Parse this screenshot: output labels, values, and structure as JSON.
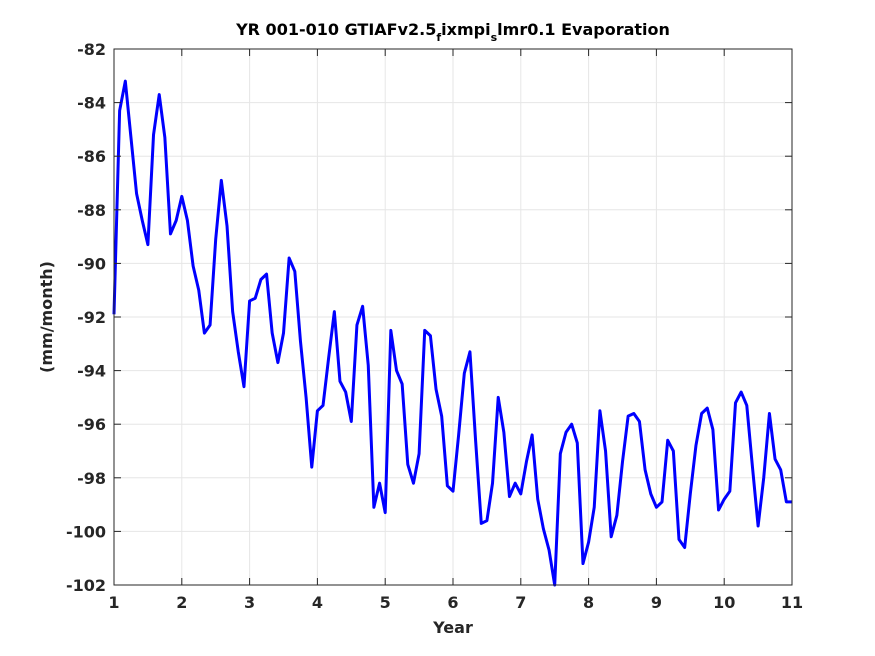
{
  "chart_data": {
    "type": "line",
    "title": {
      "part1": "YR 001-010 GTIAFv2.5",
      "sub1": "f",
      "part2": "ixmpi",
      "sub2": "s",
      "part3": "lmr0.1 Evaporation"
    },
    "xlabel": "Year",
    "ylabel": "(mm/month)",
    "xlim": [
      1,
      11
    ],
    "ylim": [
      -102,
      -82
    ],
    "xticks": [
      1,
      2,
      3,
      4,
      5,
      6,
      7,
      8,
      9,
      10,
      11
    ],
    "yticks": [
      -102,
      -100,
      -98,
      -96,
      -94,
      -92,
      -90,
      -88,
      -86,
      -84,
      -82
    ],
    "grid": true,
    "series": [
      {
        "color": "#0000ff",
        "x": [
          1.0,
          1.083,
          1.167,
          1.25,
          1.333,
          1.417,
          1.5,
          1.583,
          1.667,
          1.75,
          1.833,
          1.917,
          2.0,
          2.083,
          2.167,
          2.25,
          2.333,
          2.417,
          2.5,
          2.583,
          2.667,
          2.75,
          2.833,
          2.917,
          3.0,
          3.083,
          3.167,
          3.25,
          3.333,
          3.417,
          3.5,
          3.583,
          3.667,
          3.75,
          3.833,
          3.917,
          4.0,
          4.083,
          4.167,
          4.25,
          4.333,
          4.417,
          4.5,
          4.583,
          4.667,
          4.75,
          4.833,
          4.917,
          5.0,
          5.083,
          5.167,
          5.25,
          5.333,
          5.417,
          5.5,
          5.583,
          5.667,
          5.75,
          5.833,
          5.917,
          6.0,
          6.083,
          6.167,
          6.25,
          6.333,
          6.417,
          6.5,
          6.583,
          6.667,
          6.75,
          6.833,
          6.917,
          7.0,
          7.083,
          7.167,
          7.25,
          7.333,
          7.417,
          7.5,
          7.583,
          7.667,
          7.75,
          7.833,
          7.917,
          8.0,
          8.083,
          8.167,
          8.25,
          8.333,
          8.417,
          8.5,
          8.583,
          8.667,
          8.75,
          8.833,
          8.917,
          9.0,
          9.083,
          9.167,
          9.25,
          9.333,
          9.417,
          9.5,
          9.583,
          9.667,
          9.75,
          9.833,
          9.917,
          10.0,
          10.083,
          10.167,
          10.25,
          10.333,
          10.417,
          10.5,
          10.583,
          10.667,
          10.75,
          10.833,
          10.917,
          11.0
        ],
        "y": [
          -91.9,
          -84.3,
          -83.2,
          -85.3,
          -87.4,
          -88.4,
          -89.3,
          -85.2,
          -83.7,
          -85.3,
          -88.9,
          -88.4,
          -87.5,
          -88.4,
          -90.1,
          -91.0,
          -92.6,
          -92.3,
          -89.1,
          -86.9,
          -88.6,
          -91.8,
          -93.3,
          -94.6,
          -91.4,
          -91.3,
          -90.6,
          -90.4,
          -92.6,
          -93.7,
          -92.6,
          -89.8,
          -90.3,
          -92.9,
          -95.0,
          -97.6,
          -95.5,
          -95.3,
          -93.5,
          -91.8,
          -94.4,
          -94.8,
          -95.9,
          -92.3,
          -91.6,
          -93.8,
          -99.1,
          -98.2,
          -99.3,
          -92.5,
          -94.0,
          -94.5,
          -97.5,
          -98.2,
          -97.1,
          -92.5,
          -92.7,
          -94.7,
          -95.7,
          -98.3,
          -98.5,
          -96.4,
          -94.1,
          -93.3,
          -96.6,
          -99.7,
          -99.6,
          -98.2,
          -95.0,
          -96.3,
          -98.7,
          -98.2,
          -98.6,
          -97.4,
          -96.4,
          -98.8,
          -99.9,
          -100.7,
          -102.0,
          -97.1,
          -96.3,
          -96.0,
          -96.7,
          -101.2,
          -100.4,
          -99.1,
          -95.5,
          -97.0,
          -100.2,
          -99.4,
          -97.4,
          -95.7,
          -95.6,
          -95.9,
          -97.7,
          -98.6,
          -99.1,
          -98.9,
          -96.6,
          -97.0,
          -100.3,
          -100.6,
          -98.6,
          -96.8,
          -95.6,
          -95.4,
          -96.2,
          -99.2,
          -98.8,
          -98.5,
          -95.2,
          -94.8,
          -95.3,
          -97.6,
          -99.8,
          -98.0,
          -95.6,
          -97.3,
          -97.7,
          -98.9,
          -98.9
        ]
      }
    ]
  }
}
